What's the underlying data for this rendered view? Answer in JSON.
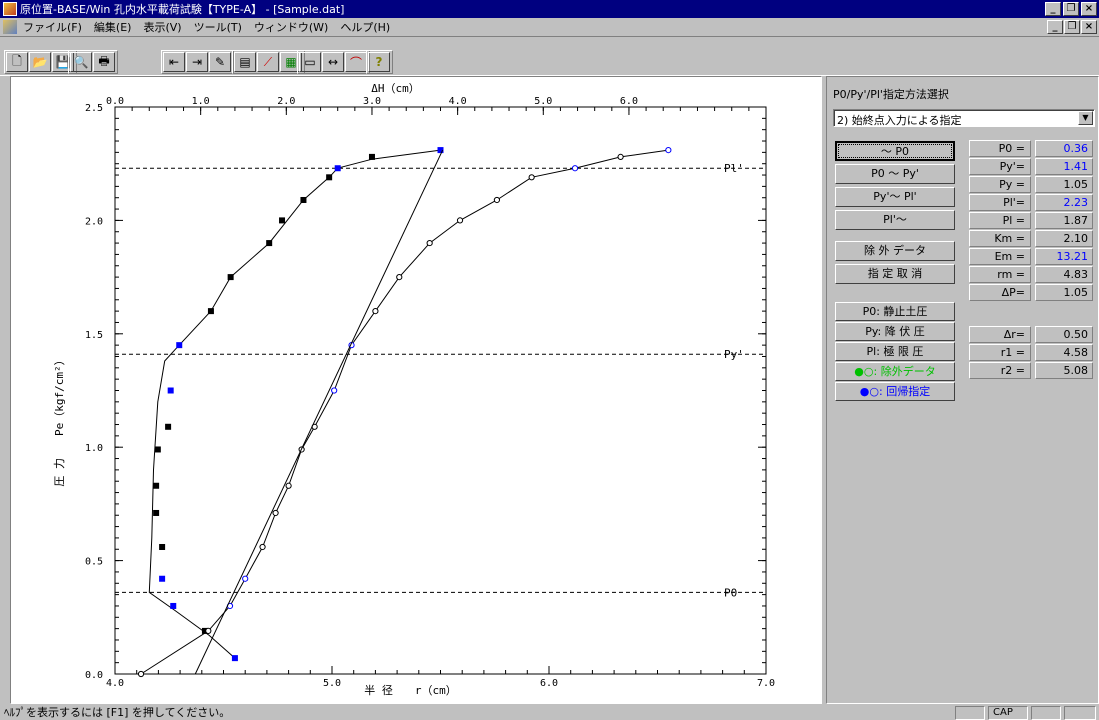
{
  "window": {
    "title": "原位置-BASE/Win 孔内水平載荷試験【TYPE-A】 - [Sample.dat]",
    "controls": [
      "_",
      "❐",
      "×"
    ]
  },
  "menu": {
    "items": [
      "ファイル(F)",
      "編集(E)",
      "表示(V)",
      "ツール(T)",
      "ウィンドウ(W)",
      "ヘルプ(H)"
    ]
  },
  "toolbar": {
    "groups": [
      [
        "new-icon",
        "open-icon",
        "save-icon"
      ],
      [
        "print-preview-icon",
        "print-icon"
      ],
      [
        "import-icon",
        "export-icon",
        "edit-data-icon"
      ],
      [
        "table-icon",
        "graph-icon",
        "grid-icon"
      ],
      [
        "list-icon",
        "scale-icon",
        "curve-icon"
      ],
      [
        "help-icon"
      ]
    ],
    "glyphs": {
      "new-icon": "🗋",
      "open-icon": "📂",
      "save-icon": "💾",
      "print-preview-icon": "🔍",
      "print-icon": "🖶",
      "import-icon": "⇤",
      "export-icon": "⇥",
      "edit-data-icon": "✎",
      "table-icon": "▤",
      "graph-icon": "⟋",
      "grid-icon": "▦",
      "list-icon": "▭",
      "scale-icon": "↔",
      "curve-icon": "⌒",
      "help-icon": "?"
    }
  },
  "panel": {
    "title": "P0/Py'/Pl'指定方法選択",
    "method_select": "2) 始終点入力による指定",
    "buttons": [
      "～ P0",
      "P0 ～ Py'",
      "Py'～ Pl'",
      "Pl'～",
      "除 外 データ",
      "指 定 取 消"
    ],
    "legend_buttons": [
      {
        "label": "P0: 静止土圧",
        "color": "#000000"
      },
      {
        "label": "Py: 降 伏 圧",
        "color": "#000000"
      },
      {
        "label": "Pl: 極 限 圧",
        "color": "#000000"
      },
      {
        "label": "●○: 除外データ",
        "color": "#00c000"
      },
      {
        "label": "●○: 回帰指定",
        "color": "#0000ff"
      }
    ],
    "params": [
      {
        "label": "P0 =",
        "value": "0.36",
        "blue": true
      },
      {
        "label": "Py'=",
        "value": "1.41",
        "blue": true
      },
      {
        "label": "Py =",
        "value": "1.05",
        "blue": false
      },
      {
        "label": "Pl'=",
        "value": "2.23",
        "blue": true
      },
      {
        "label": "Pl =",
        "value": "1.87",
        "blue": false
      },
      {
        "label": "Km =",
        "value": "2.10",
        "blue": false
      },
      {
        "label": "Em =",
        "value": "13.21",
        "blue": true
      },
      {
        "label": "rm =",
        "value": "4.83",
        "blue": false
      },
      {
        "label": "ΔP=",
        "value": "1.05",
        "blue": false
      }
    ],
    "params2": [
      {
        "label": "Δr=",
        "value": "0.50"
      },
      {
        "label": "r1 =",
        "value": "4.58"
      },
      {
        "label": "r2 =",
        "value": "5.08"
      }
    ]
  },
  "status": {
    "message": "ﾍﾙﾌﾟを表示するには [F1] を押してください。",
    "cap": "CAP"
  },
  "chart_data": {
    "type": "scatter",
    "top_axis_label": "ΔH（cm）",
    "top_ticks": [
      "0.0",
      "1.0",
      "2.0",
      "3.0",
      "4.0",
      "5.0",
      "6.0"
    ],
    "xlabel": "半 径　　r（cm）",
    "ylabel": "圧 力　　Pe（kgf/cm²）",
    "x_ticks": [
      "4.0",
      "5.0",
      "6.0",
      "7.0"
    ],
    "y_ticks": [
      "0.0",
      "0.5",
      "1.0",
      "1.5",
      "2.0",
      "2.5"
    ],
    "xlim": [
      4.0,
      7.0
    ],
    "ylim": [
      0.0,
      2.5
    ],
    "top_xlim": [
      0.0,
      7.6
    ],
    "ref_lines": [
      {
        "label": "P0",
        "y": 0.36
      },
      {
        "label": "Py'",
        "y": 1.41
      },
      {
        "label": "Pl'",
        "y": 2.23
      }
    ],
    "series": [
      {
        "x_axis": "top",
        "marker": "filled",
        "points": [
          {
            "x": 3.8,
            "y": 2.31,
            "c": "#0000ff"
          },
          {
            "x": 3.0,
            "y": 2.28,
            "c": "#000000"
          },
          {
            "x": 2.6,
            "y": 2.23,
            "c": "#0000ff"
          },
          {
            "x": 2.5,
            "y": 2.19,
            "c": "#000000"
          },
          {
            "x": 2.2,
            "y": 2.09,
            "c": "#000000"
          },
          {
            "x": 1.95,
            "y": 2.0,
            "c": "#000000"
          },
          {
            "x": 1.8,
            "y": 1.9,
            "c": "#000000"
          },
          {
            "x": 1.35,
            "y": 1.75,
            "c": "#000000"
          },
          {
            "x": 1.12,
            "y": 1.6,
            "c": "#000000"
          },
          {
            "x": 0.75,
            "y": 1.45,
            "c": "#0000ff"
          },
          {
            "x": 0.65,
            "y": 1.25,
            "c": "#0000ff"
          },
          {
            "x": 0.62,
            "y": 1.09,
            "c": "#000000"
          },
          {
            "x": 0.5,
            "y": 0.99,
            "c": "#000000"
          },
          {
            "x": 0.48,
            "y": 0.83,
            "c": "#000000"
          },
          {
            "x": 0.48,
            "y": 0.71,
            "c": "#000000"
          },
          {
            "x": 0.55,
            "y": 0.56,
            "c": "#000000"
          },
          {
            "x": 0.55,
            "y": 0.42,
            "c": "#0000ff"
          },
          {
            "x": 0.68,
            "y": 0.3,
            "c": "#0000ff"
          },
          {
            "x": 1.05,
            "y": 0.19,
            "c": "#000000"
          },
          {
            "x": 1.4,
            "y": 0.07,
            "c": "#0000ff"
          }
        ],
        "curve": [
          [
            3.8,
            2.31
          ],
          [
            3.0,
            2.27
          ],
          [
            2.6,
            2.23
          ],
          [
            2.5,
            2.19
          ],
          [
            2.2,
            2.09
          ],
          [
            1.8,
            1.9
          ],
          [
            1.35,
            1.75
          ],
          [
            1.12,
            1.6
          ],
          [
            0.7,
            1.43
          ],
          [
            0.58,
            1.38
          ],
          [
            0.5,
            1.2
          ],
          [
            0.45,
            0.9
          ],
          [
            0.43,
            0.6
          ],
          [
            0.4,
            0.36
          ],
          [
            0.7,
            0.28
          ],
          [
            1.1,
            0.17
          ],
          [
            1.4,
            0.07
          ]
        ]
      },
      {
        "x_axis": "bottom",
        "marker": "open",
        "points": [
          {
            "x": 4.12,
            "y": 0.0,
            "c": "#000000"
          },
          {
            "x": 4.43,
            "y": 0.19,
            "c": "#000000"
          },
          {
            "x": 4.53,
            "y": 0.3,
            "c": "#0000ff"
          },
          {
            "x": 4.6,
            "y": 0.42,
            "c": "#0000ff"
          },
          {
            "x": 4.68,
            "y": 0.56,
            "c": "#000000"
          },
          {
            "x": 4.74,
            "y": 0.71,
            "c": "#000000"
          },
          {
            "x": 4.8,
            "y": 0.83,
            "c": "#000000"
          },
          {
            "x": 4.86,
            "y": 0.99,
            "c": "#000000"
          },
          {
            "x": 4.92,
            "y": 1.09,
            "c": "#000000"
          },
          {
            "x": 5.01,
            "y": 1.25,
            "c": "#0000ff"
          },
          {
            "x": 5.09,
            "y": 1.45,
            "c": "#0000ff"
          },
          {
            "x": 5.2,
            "y": 1.6,
            "c": "#000000"
          },
          {
            "x": 5.31,
            "y": 1.75,
            "c": "#000000"
          },
          {
            "x": 5.45,
            "y": 1.9,
            "c": "#000000"
          },
          {
            "x": 5.59,
            "y": 2.0,
            "c": "#000000"
          },
          {
            "x": 5.76,
            "y": 2.09,
            "c": "#000000"
          },
          {
            "x": 5.92,
            "y": 2.19,
            "c": "#000000"
          },
          {
            "x": 6.12,
            "y": 2.23,
            "c": "#0000ff"
          },
          {
            "x": 6.33,
            "y": 2.28,
            "c": "#000000"
          },
          {
            "x": 6.55,
            "y": 2.31,
            "c": "#0000ff"
          }
        ]
      }
    ],
    "regression_line": {
      "x1": 4.37,
      "y1": 0.0,
      "x2": 5.51,
      "y2": 2.31
    }
  }
}
